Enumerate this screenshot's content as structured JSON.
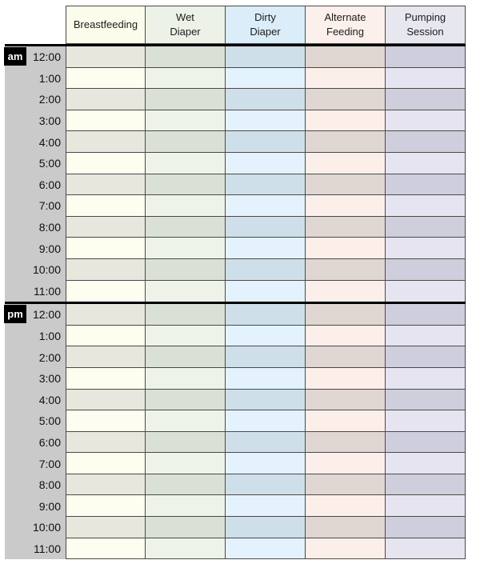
{
  "sheet": {
    "columns": [
      {
        "label": "Breastfeeding",
        "header_bg": "#fcfcec",
        "row_light_bg": "#fdfdf0",
        "row_dark_bg": "#e8e7dd"
      },
      {
        "label": "Wet Diaper",
        "header_bg": "#edf2e8",
        "row_light_bg": "#eef3ea",
        "row_dark_bg": "#d9e0d6"
      },
      {
        "label": "Dirty Diaper",
        "header_bg": "#daedf8",
        "row_light_bg": "#e3f2fc",
        "row_dark_bg": "#cfdfe9"
      },
      {
        "label": "Alternate Feeding",
        "header_bg": "#fbf0eb",
        "row_light_bg": "#fcefe9",
        "row_dark_bg": "#e0d6d2"
      },
      {
        "label": "Pumping Session",
        "header_bg": "#e7e7f0",
        "row_light_bg": "#e6e4f1",
        "row_dark_bg": "#cfcedc"
      }
    ],
    "periods": [
      {
        "label": "am",
        "times": [
          "12:00",
          "1:00",
          "2:00",
          "3:00",
          "4:00",
          "5:00",
          "6:00",
          "7:00",
          "8:00",
          "9:00",
          "10:00",
          "11:00"
        ]
      },
      {
        "label": "pm",
        "times": [
          "12:00",
          "1:00",
          "2:00",
          "3:00",
          "4:00",
          "5:00",
          "6:00",
          "7:00",
          "8:00",
          "9:00",
          "10:00",
          "11:00"
        ]
      }
    ],
    "colors": {
      "page_bg": "#ffffff",
      "gutter_bg": "#cacaca",
      "grid_line": "#4a4a4a",
      "separator": "#000000",
      "badge_bg": "#000000",
      "badge_text": "#ffffff",
      "header_text": "#1c1c1c",
      "time_text": "#0f0f0f"
    }
  }
}
